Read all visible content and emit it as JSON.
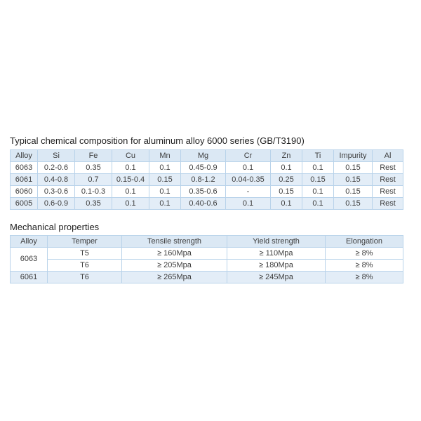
{
  "chemical_section": {
    "title": "Typical chemical composition for aluminum alloy 6000 series (GB/T3190)",
    "table": {
      "headers": [
        "Alloy",
        "Si",
        "Fe",
        "Cu",
        "Mn",
        "Mg",
        "Cr",
        "Zn",
        "Ti",
        "Impurity",
        "Al"
      ],
      "rows": [
        [
          "6063",
          "0.2-0.6",
          "0.35",
          "0.1",
          "0.1",
          "0.45-0.9",
          "0.1",
          "0.1",
          "0.1",
          "0.15",
          "Rest"
        ],
        [
          "6061",
          "0.4-0.8",
          "0.7",
          "0.15-0.4",
          "0.15",
          "0.8-1.2",
          "0.04-0.35",
          "0.25",
          "0.15",
          "0.15",
          "Rest"
        ],
        [
          "6060",
          "0.3-0.6",
          "0.1-0.3",
          "0.1",
          "0.1",
          "0.35-0.6",
          "-",
          "0.15",
          "0.1",
          "0.15",
          "Rest"
        ],
        [
          "6005",
          "0.6-0.9",
          "0.35",
          "0.1",
          "0.1",
          "0.40-0.6",
          "0.1",
          "0.1",
          "0.1",
          "0.15",
          "Rest"
        ]
      ]
    }
  },
  "mechanical_section": {
    "title": "Mechanical properties",
    "table": {
      "headers": [
        "Alloy",
        "Temper",
        "Tensile strength",
        "Yield strength",
        "Elongation"
      ],
      "rows": [
        {
          "alloy": "6063",
          "alloy_rowspan": 2,
          "band": false,
          "temper": "T5",
          "tensile_strength": "≥ 160Mpa",
          "yield_strength": "≥ 110Mpa",
          "elongation": "≥ 8%"
        },
        {
          "band": false,
          "temper": "T6",
          "tensile_strength": "≥ 205Mpa",
          "yield_strength": "≥ 180Mpa",
          "elongation": "≥ 8%"
        },
        {
          "alloy": "6061",
          "alloy_rowspan": 1,
          "band": true,
          "temper": "T6",
          "tensile_strength": "≥ 265Mpa",
          "yield_strength": "≥ 245Mpa",
          "elongation": "≥ 8%"
        }
      ]
    }
  },
  "colors": {
    "header_bg": "#dbe8f4",
    "band_bg": "#e3edf7",
    "border": "#b9d3ea",
    "cell_text": "#3d3d3d",
    "title_text": "#1f1f1f",
    "page_bg": "#ffffff"
  }
}
